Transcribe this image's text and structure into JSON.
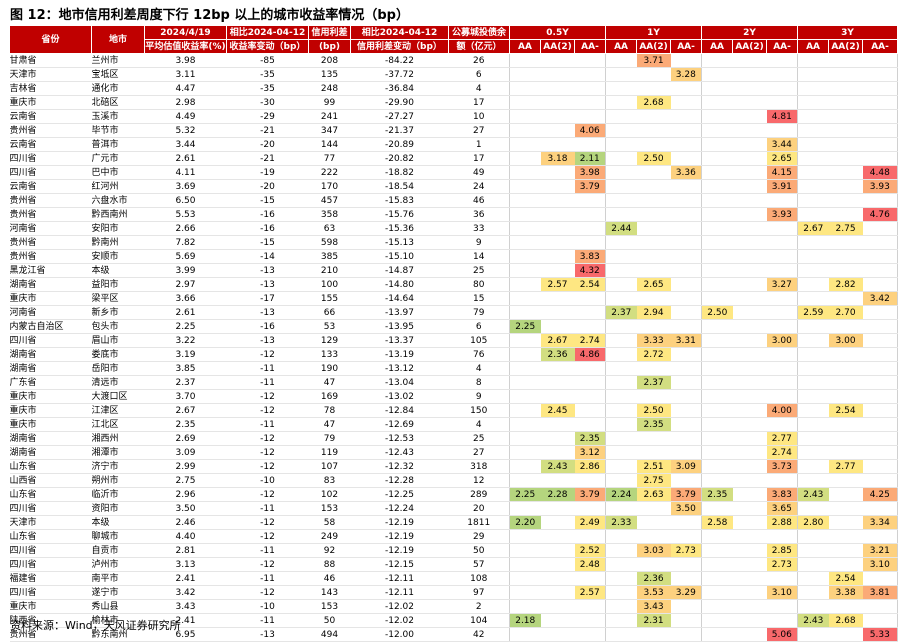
{
  "title": "图 12：地市信用利差周度下行 12bp 以上的城市收益率情况（bp）",
  "source": "资料来源：Wind，天风证券研究所",
  "colors": {
    "header_bg": "#c00000",
    "high": "#f8696b",
    "midhigh": "#fbaa77",
    "mid": "#fdd17f",
    "midlow": "#fee782",
    "low": "#d2de81",
    "lowest": "#b5d57e"
  },
  "header": {
    "province": "省份",
    "city": "地市",
    "spread_date": "2024/4/19",
    "spread_sub": "平均估值收益率(%)",
    "yield_change_top": "相比2024-04-12",
    "yield_change_sub": "收益率变动（bp）",
    "spread_top": "信用利差",
    "spread_sub2": "(bp)",
    "spread_change_top": "相比2024-04-12",
    "spread_change_sub": "信用利差变动（bp）",
    "debt_top": "公募城投债余",
    "debt_sub": "额（亿元）",
    "groups": [
      "0.5Y",
      "1Y",
      "2Y",
      "3Y"
    ],
    "ratings": [
      "AA",
      "AA(2)",
      "AA-"
    ]
  },
  "rows": [
    {
      "province": "甘肃省",
      "city": "兰州市",
      "yld": "3.98",
      "yld_chg": "-85",
      "spread": "208",
      "spread_chg": "-84.22",
      "debt": "26",
      "y": [
        "",
        "",
        "",
        "",
        "3.71",
        "",
        "",
        "",
        "",
        "",
        "",
        ""
      ]
    },
    {
      "province": "天津市",
      "city": "宝坻区",
      "yld": "3.11",
      "yld_chg": "-35",
      "spread": "135",
      "spread_chg": "-37.72",
      "debt": "6",
      "y": [
        "",
        "",
        "",
        "",
        "",
        "3.28",
        "",
        "",
        "",
        "",
        "",
        ""
      ]
    },
    {
      "province": "吉林省",
      "city": "通化市",
      "yld": "4.47",
      "yld_chg": "-35",
      "spread": "248",
      "spread_chg": "-36.84",
      "debt": "4",
      "y": [
        "",
        "",
        "",
        "",
        "",
        "",
        "",
        "",
        "",
        "",
        "",
        ""
      ]
    },
    {
      "province": "重庆市",
      "city": "北碚区",
      "yld": "2.98",
      "yld_chg": "-30",
      "spread": "99",
      "spread_chg": "-29.90",
      "debt": "17",
      "y": [
        "",
        "",
        "",
        "",
        "2.68",
        "",
        "",
        "",
        "",
        "",
        "",
        ""
      ]
    },
    {
      "province": "云南省",
      "city": "玉溪市",
      "yld": "4.49",
      "yld_chg": "-29",
      "spread": "241",
      "spread_chg": "-27.27",
      "debt": "10",
      "y": [
        "",
        "",
        "",
        "",
        "",
        "",
        "",
        "",
        "4.81",
        "",
        "",
        ""
      ]
    },
    {
      "province": "贵州省",
      "city": "毕节市",
      "yld": "5.32",
      "yld_chg": "-21",
      "spread": "347",
      "spread_chg": "-21.37",
      "debt": "27",
      "y": [
        "",
        "",
        "4.06",
        "",
        "",
        "",
        "",
        "",
        "",
        "",
        "",
        ""
      ]
    },
    {
      "province": "云南省",
      "city": "普洱市",
      "yld": "3.44",
      "yld_chg": "-20",
      "spread": "144",
      "spread_chg": "-20.89",
      "debt": "1",
      "y": [
        "",
        "",
        "",
        "",
        "",
        "",
        "",
        "",
        "3.44",
        "",
        "",
        ""
      ]
    },
    {
      "province": "四川省",
      "city": "广元市",
      "yld": "2.61",
      "yld_chg": "-21",
      "spread": "77",
      "spread_chg": "-20.82",
      "debt": "17",
      "y": [
        "",
        "3.18",
        "2.11",
        "",
        "2.50",
        "",
        "",
        "",
        "2.65",
        "",
        "",
        ""
      ]
    },
    {
      "province": "四川省",
      "city": "巴中市",
      "yld": "4.11",
      "yld_chg": "-19",
      "spread": "222",
      "spread_chg": "-18.82",
      "debt": "49",
      "y": [
        "",
        "",
        "3.98",
        "",
        "",
        "3.36",
        "",
        "",
        "4.15",
        "",
        "",
        "4.48"
      ]
    },
    {
      "province": "云南省",
      "city": "红河州",
      "yld": "3.69",
      "yld_chg": "-20",
      "spread": "170",
      "spread_chg": "-18.54",
      "debt": "24",
      "y": [
        "",
        "",
        "3.79",
        "",
        "",
        "",
        "",
        "",
        "3.91",
        "",
        "",
        "3.93"
      ]
    },
    {
      "province": "贵州省",
      "city": "六盘水市",
      "yld": "6.50",
      "yld_chg": "-15",
      "spread": "457",
      "spread_chg": "-15.83",
      "debt": "46",
      "y": [
        "",
        "",
        "",
        "",
        "",
        "",
        "",
        "",
        "",
        "",
        "",
        ""
      ]
    },
    {
      "province": "贵州省",
      "city": "黔西南州",
      "yld": "5.53",
      "yld_chg": "-16",
      "spread": "358",
      "spread_chg": "-15.76",
      "debt": "36",
      "y": [
        "",
        "",
        "",
        "",
        "",
        "",
        "",
        "",
        "3.93",
        "",
        "",
        "4.76"
      ]
    },
    {
      "province": "河南省",
      "city": "安阳市",
      "yld": "2.66",
      "yld_chg": "-16",
      "spread": "63",
      "spread_chg": "-15.36",
      "debt": "33",
      "y": [
        "",
        "",
        "",
        "2.44",
        "",
        "",
        "",
        "",
        "",
        "2.67",
        "2.75",
        ""
      ]
    },
    {
      "province": "贵州省",
      "city": "黔南州",
      "yld": "7.82",
      "yld_chg": "-15",
      "spread": "598",
      "spread_chg": "-15.13",
      "debt": "9",
      "y": [
        "",
        "",
        "",
        "",
        "",
        "",
        "",
        "",
        "",
        "",
        "",
        ""
      ]
    },
    {
      "province": "贵州省",
      "city": "安顺市",
      "yld": "5.69",
      "yld_chg": "-14",
      "spread": "385",
      "spread_chg": "-15.10",
      "debt": "14",
      "y": [
        "",
        "",
        "3.83",
        "",
        "",
        "",
        "",
        "",
        "",
        "",
        "",
        ""
      ]
    },
    {
      "province": "黑龙江省",
      "city": "本级",
      "yld": "3.99",
      "yld_chg": "-13",
      "spread": "210",
      "spread_chg": "-14.87",
      "debt": "25",
      "y": [
        "",
        "",
        "4.32",
        "",
        "",
        "",
        "",
        "",
        "",
        "",
        "",
        ""
      ]
    },
    {
      "province": "湖南省",
      "city": "益阳市",
      "yld": "2.97",
      "yld_chg": "-13",
      "spread": "100",
      "spread_chg": "-14.80",
      "debt": "80",
      "y": [
        "",
        "2.57",
        "2.54",
        "",
        "2.65",
        "",
        "",
        "",
        "3.27",
        "",
        "2.82",
        ""
      ]
    },
    {
      "province": "重庆市",
      "city": "梁平区",
      "yld": "3.66",
      "yld_chg": "-17",
      "spread": "155",
      "spread_chg": "-14.64",
      "debt": "15",
      "y": [
        "",
        "",
        "",
        "",
        "",
        "",
        "",
        "",
        "",
        "",
        "",
        "3.42"
      ]
    },
    {
      "province": "河南省",
      "city": "新乡市",
      "yld": "2.61",
      "yld_chg": "-13",
      "spread": "66",
      "spread_chg": "-13.97",
      "debt": "79",
      "y": [
        "",
        "",
        "",
        "2.37",
        "2.94",
        "",
        "2.50",
        "",
        "",
        "2.59",
        "2.70",
        ""
      ]
    },
    {
      "province": "内蒙古自治区",
      "city": "包头市",
      "yld": "2.25",
      "yld_chg": "-16",
      "spread": "53",
      "spread_chg": "-13.95",
      "debt": "6",
      "y": [
        "2.25",
        "",
        "",
        "",
        "",
        "",
        "",
        "",
        "",
        "",
        "",
        ""
      ]
    },
    {
      "province": "四川省",
      "city": "眉山市",
      "yld": "3.22",
      "yld_chg": "-13",
      "spread": "129",
      "spread_chg": "-13.37",
      "debt": "105",
      "y": [
        "",
        "2.67",
        "2.74",
        "",
        "3.33",
        "3.31",
        "",
        "",
        "3.00",
        "",
        "3.00",
        ""
      ]
    },
    {
      "province": "湖南省",
      "city": "娄底市",
      "yld": "3.19",
      "yld_chg": "-12",
      "spread": "133",
      "spread_chg": "-13.19",
      "debt": "76",
      "y": [
        "",
        "2.36",
        "4.86",
        "",
        "2.72",
        "",
        "",
        "",
        "",
        "",
        "",
        ""
      ]
    },
    {
      "province": "湖南省",
      "city": "岳阳市",
      "yld": "3.85",
      "yld_chg": "-11",
      "spread": "190",
      "spread_chg": "-13.12",
      "debt": "4",
      "y": [
        "",
        "",
        "",
        "",
        "",
        "",
        "",
        "",
        "",
        "",
        "",
        ""
      ]
    },
    {
      "province": "广东省",
      "city": "清远市",
      "yld": "2.37",
      "yld_chg": "-11",
      "spread": "47",
      "spread_chg": "-13.04",
      "debt": "8",
      "y": [
        "",
        "",
        "",
        "",
        "2.37",
        "",
        "",
        "",
        "",
        "",
        "",
        ""
      ]
    },
    {
      "province": "重庆市",
      "city": "大渡口区",
      "yld": "3.70",
      "yld_chg": "-12",
      "spread": "169",
      "spread_chg": "-13.02",
      "debt": "9",
      "y": [
        "",
        "",
        "",
        "",
        "",
        "",
        "",
        "",
        "",
        "",
        "",
        ""
      ]
    },
    {
      "province": "重庆市",
      "city": "江津区",
      "yld": "2.67",
      "yld_chg": "-12",
      "spread": "78",
      "spread_chg": "-12.84",
      "debt": "150",
      "y": [
        "",
        "2.45",
        "",
        "",
        "2.50",
        "",
        "",
        "",
        "4.00",
        "",
        "2.54",
        ""
      ]
    },
    {
      "province": "重庆市",
      "city": "江北区",
      "yld": "2.35",
      "yld_chg": "-11",
      "spread": "47",
      "spread_chg": "-12.69",
      "debt": "4",
      "y": [
        "",
        "",
        "",
        "",
        "2.35",
        "",
        "",
        "",
        "",
        "",
        "",
        ""
      ]
    },
    {
      "province": "湖南省",
      "city": "湘西州",
      "yld": "2.69",
      "yld_chg": "-12",
      "spread": "79",
      "spread_chg": "-12.53",
      "debt": "25",
      "y": [
        "",
        "",
        "2.35",
        "",
        "",
        "",
        "",
        "",
        "2.77",
        "",
        "",
        ""
      ]
    },
    {
      "province": "湖南省",
      "city": "湘潭市",
      "yld": "3.09",
      "yld_chg": "-12",
      "spread": "119",
      "spread_chg": "-12.43",
      "debt": "27",
      "y": [
        "",
        "",
        "3.12",
        "",
        "",
        "",
        "",
        "",
        "2.74",
        "",
        "",
        ""
      ]
    },
    {
      "province": "山东省",
      "city": "济宁市",
      "yld": "2.99",
      "yld_chg": "-12",
      "spread": "107",
      "spread_chg": "-12.32",
      "debt": "318",
      "y": [
        "",
        "2.43",
        "2.86",
        "",
        "2.51",
        "3.09",
        "",
        "",
        "3.73",
        "",
        "2.77",
        ""
      ]
    },
    {
      "province": "山西省",
      "city": "朔州市",
      "yld": "2.75",
      "yld_chg": "-10",
      "spread": "83",
      "spread_chg": "-12.28",
      "debt": "12",
      "y": [
        "",
        "",
        "",
        "",
        "2.75",
        "",
        "",
        "",
        "",
        "",
        "",
        ""
      ]
    },
    {
      "province": "山东省",
      "city": "临沂市",
      "yld": "2.96",
      "yld_chg": "-12",
      "spread": "102",
      "spread_chg": "-12.25",
      "debt": "289",
      "y": [
        "2.25",
        "2.28",
        "3.79",
        "2.24",
        "2.63",
        "3.79",
        "2.35",
        "",
        "3.83",
        "2.43",
        "",
        "4.25"
      ]
    },
    {
      "province": "四川省",
      "city": "资阳市",
      "yld": "3.50",
      "yld_chg": "-11",
      "spread": "153",
      "spread_chg": "-12.24",
      "debt": "20",
      "y": [
        "",
        "",
        "",
        "",
        "",
        "3.50",
        "",
        "",
        "3.65",
        "",
        "",
        ""
      ]
    },
    {
      "province": "天津市",
      "city": "本级",
      "yld": "2.46",
      "yld_chg": "-12",
      "spread": "58",
      "spread_chg": "-12.19",
      "debt": "1811",
      "y": [
        "2.20",
        "",
        "2.49",
        "2.33",
        "",
        "",
        "2.58",
        "",
        "2.88",
        "2.80",
        "",
        "3.34"
      ]
    },
    {
      "province": "山东省",
      "city": "聊城市",
      "yld": "4.40",
      "yld_chg": "-12",
      "spread": "249",
      "spread_chg": "-12.19",
      "debt": "29",
      "y": [
        "",
        "",
        "",
        "",
        "",
        "",
        "",
        "",
        "",
        "",
        "",
        ""
      ]
    },
    {
      "province": "四川省",
      "city": "自贡市",
      "yld": "2.81",
      "yld_chg": "-11",
      "spread": "92",
      "spread_chg": "-12.19",
      "debt": "50",
      "y": [
        "",
        "",
        "2.52",
        "",
        "3.03",
        "2.73",
        "",
        "",
        "2.85",
        "",
        "",
        "3.21"
      ]
    },
    {
      "province": "四川省",
      "city": "泸州市",
      "yld": "3.13",
      "yld_chg": "-12",
      "spread": "88",
      "spread_chg": "-12.15",
      "debt": "57",
      "y": [
        "",
        "",
        "2.48",
        "",
        "",
        "",
        "",
        "",
        "2.73",
        "",
        "",
        "3.10"
      ]
    },
    {
      "province": "福建省",
      "city": "南平市",
      "yld": "2.41",
      "yld_chg": "-11",
      "spread": "46",
      "spread_chg": "-12.11",
      "debt": "108",
      "y": [
        "",
        "",
        "",
        "",
        "2.36",
        "",
        "",
        "",
        "",
        "",
        "2.54",
        ""
      ]
    },
    {
      "province": "四川省",
      "city": "遂宁市",
      "yld": "3.42",
      "yld_chg": "-12",
      "spread": "143",
      "spread_chg": "-12.11",
      "debt": "97",
      "y": [
        "",
        "",
        "2.57",
        "",
        "3.53",
        "3.29",
        "",
        "",
        "3.10",
        "",
        "3.38",
        "3.81"
      ]
    },
    {
      "province": "重庆市",
      "city": "秀山县",
      "yld": "3.43",
      "yld_chg": "-10",
      "spread": "153",
      "spread_chg": "-12.02",
      "debt": "2",
      "y": [
        "",
        "",
        "",
        "",
        "3.43",
        "",
        "",
        "",
        "",
        "",
        "",
        ""
      ]
    },
    {
      "province": "陕西省",
      "city": "榆林市",
      "yld": "2.41",
      "yld_chg": "-11",
      "spread": "50",
      "spread_chg": "-12.02",
      "debt": "104",
      "y": [
        "2.18",
        "",
        "",
        "",
        "2.31",
        "",
        "",
        "",
        "",
        "2.43",
        "2.68",
        ""
      ]
    },
    {
      "province": "贵州省",
      "city": "黔东南州",
      "yld": "6.95",
      "yld_chg": "-13",
      "spread": "494",
      "spread_chg": "-12.00",
      "debt": "42",
      "y": [
        "",
        "",
        "",
        "",
        "",
        "",
        "",
        "",
        "5.06",
        "",
        "",
        "5.33"
      ]
    }
  ]
}
